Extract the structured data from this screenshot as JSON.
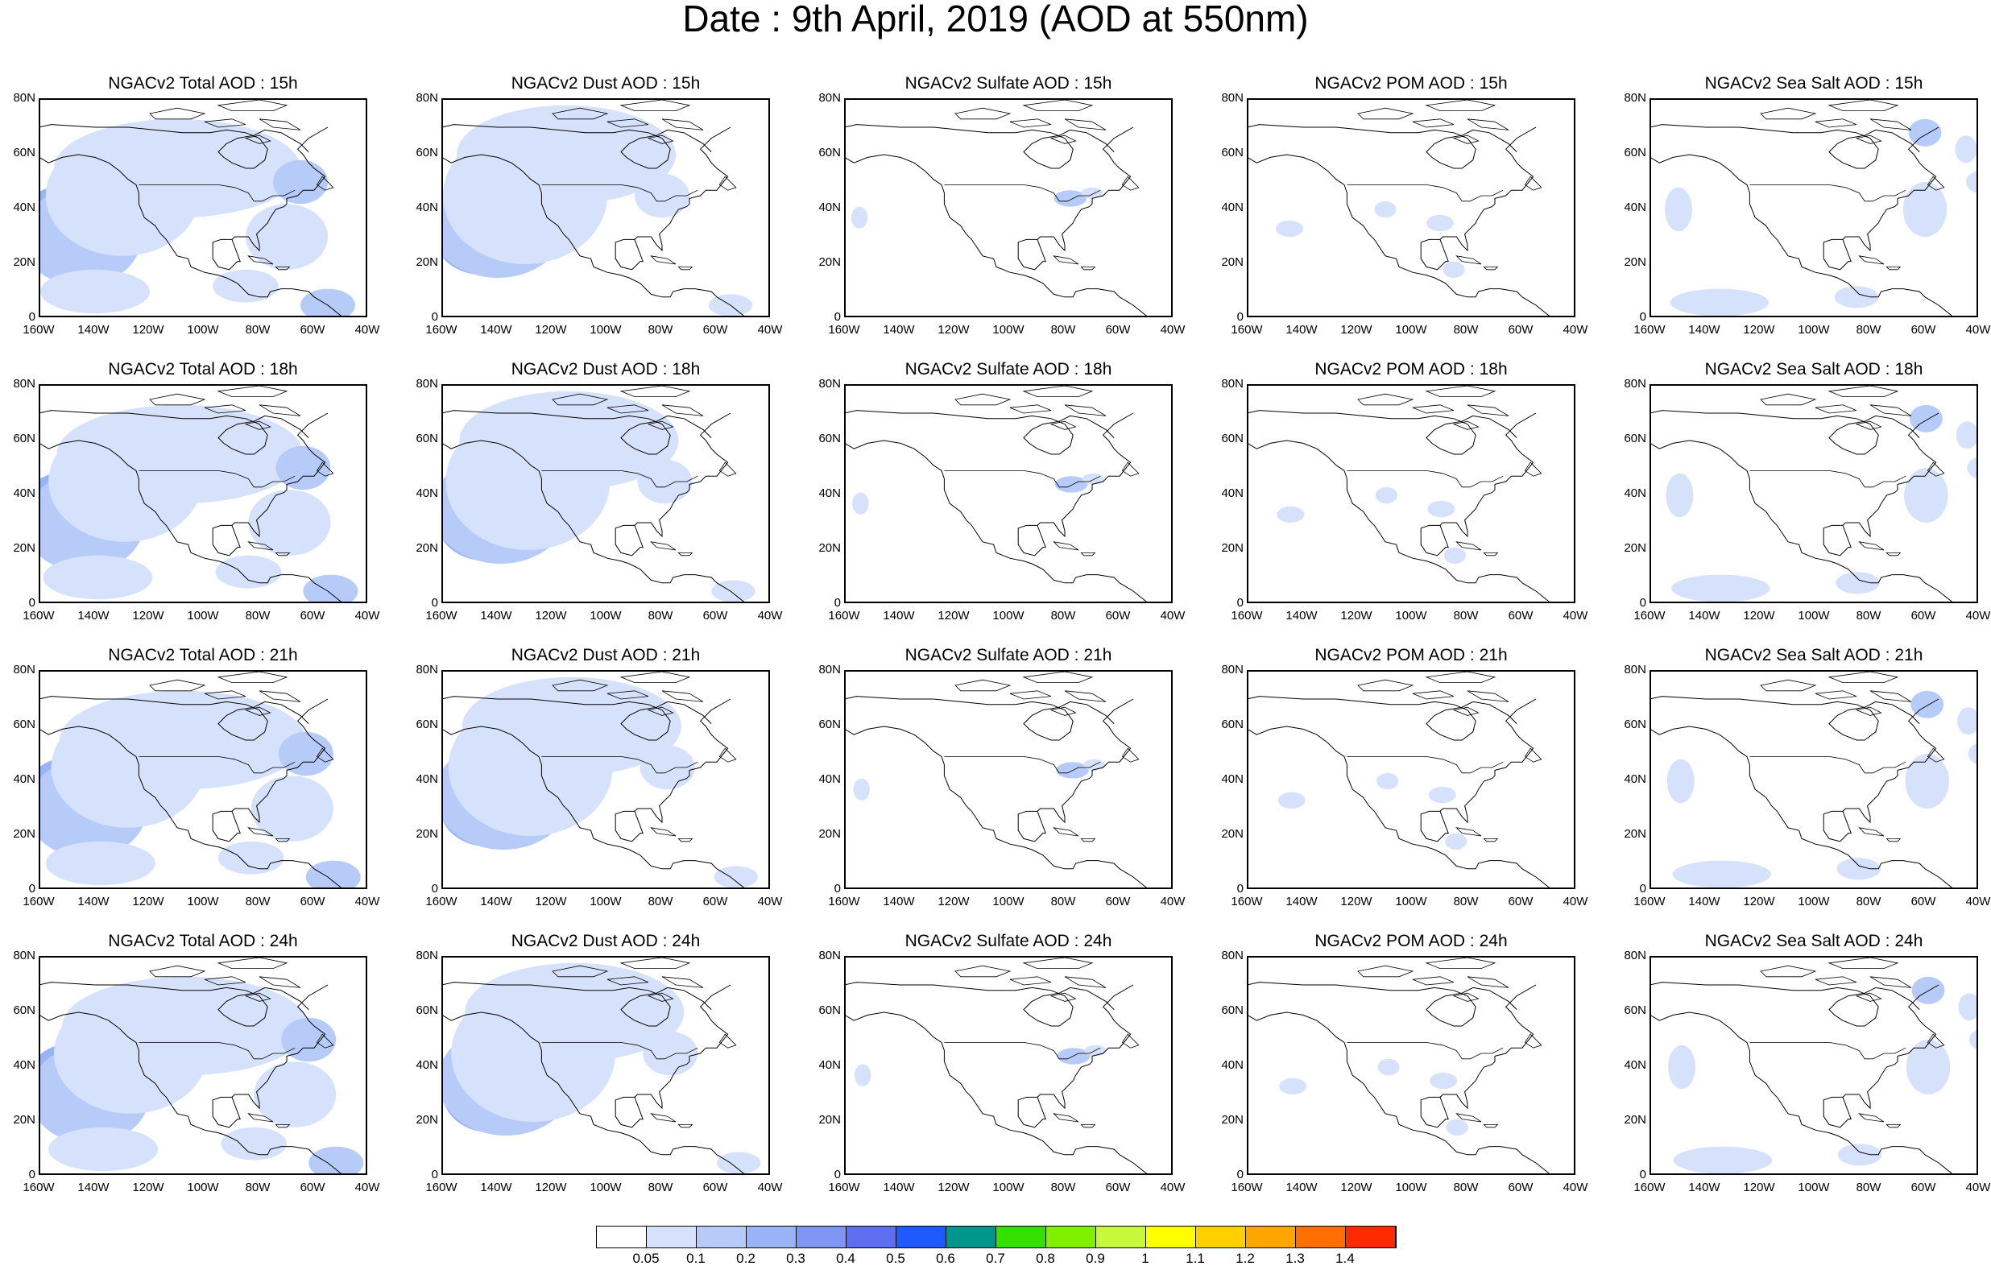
{
  "title": "Date : 9th April, 2019 (AOD at 550nm)",
  "panel_titles": [
    [
      "NGACv2 Total AOD : 15h",
      "NGACv2 Dust AOD : 15h",
      "NGACv2 Sulfate AOD : 15h",
      "NGACv2 POM AOD : 15h",
      "NGACv2 Sea Salt AOD : 15h"
    ],
    [
      "NGACv2 Total AOD : 18h",
      "NGACv2 Dust AOD : 18h",
      "NGACv2 Sulfate AOD : 18h",
      "NGACv2 POM AOD : 18h",
      "NGACv2 Sea Salt AOD : 18h"
    ],
    [
      "NGACv2 Total AOD : 21h",
      "NGACv2 Dust AOD : 21h",
      "NGACv2 Sulfate AOD : 21h",
      "NGACv2 POM AOD : 21h",
      "NGACv2 Sea Salt AOD : 21h"
    ],
    [
      "NGACv2 Total AOD : 24h",
      "NGACv2 Dust AOD : 24h",
      "NGACv2 Sulfate AOD : 24h",
      "NGACv2 POM AOD : 24h",
      "NGACv2 Sea Salt  AOD : 24h"
    ]
  ],
  "lat_ticks": [
    "80N",
    "60N",
    "40N",
    "20N",
    "0"
  ],
  "lon_ticks": [
    "160W",
    "140W",
    "120W",
    "100W",
    "80W",
    "60W",
    "40W"
  ],
  "colorbar": {
    "colors": [
      "#ffffff",
      "#d6e2fb",
      "#b7cbf8",
      "#99b3f7",
      "#7f96f5",
      "#5e6ef0",
      "#1e5aff",
      "#00968c",
      "#33e000",
      "#7ef000",
      "#c8f83c",
      "#ffff00",
      "#ffcf00",
      "#ffa500",
      "#ff6e00",
      "#ff2a00"
    ],
    "labels": [
      "0.05",
      "0.1",
      "0.2",
      "0.3",
      "0.4",
      "0.5",
      "0.6",
      "0.7",
      "0.8",
      "0.9",
      "1",
      "1.1",
      "1.2",
      "1.3",
      "1.4"
    ]
  },
  "chart_data": {
    "type": "heatmap",
    "variable": "AOD at 550nm",
    "rows": [
      "15h",
      "18h",
      "21h",
      "24h"
    ],
    "columns": [
      "Total AOD",
      "Dust AOD",
      "Sulfate AOD",
      "POM AOD",
      "Sea Salt AOD"
    ],
    "xlim": [
      "160W",
      "40W"
    ],
    "ylim": [
      "0",
      "80N"
    ],
    "levels": [
      0.05,
      0.1,
      0.2,
      0.3,
      0.4,
      0.5,
      0.6,
      0.7,
      0.8,
      0.9,
      1,
      1.1,
      1.2,
      1.3,
      1.4
    ]
  }
}
